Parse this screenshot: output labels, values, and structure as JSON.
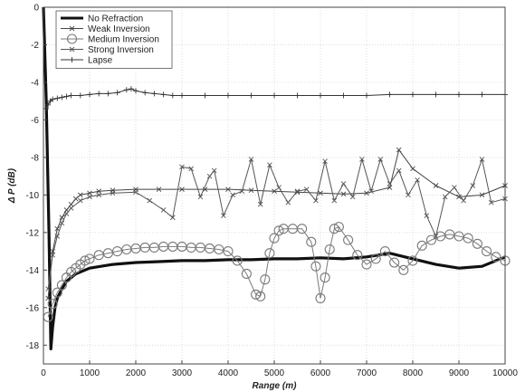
{
  "chart_data": {
    "type": "line",
    "title": "",
    "xlabel": "Range (m)",
    "ylabel": "Δ P (dB)",
    "xlim": [
      0,
      10000
    ],
    "ylim": [
      -19,
      0
    ],
    "xticks": [
      "0",
      "1000",
      "2000",
      "3000",
      "4000",
      "5000",
      "6000",
      "7000",
      "8000",
      "9000",
      "10000"
    ],
    "yticks": [
      "0",
      "-2",
      "-4",
      "-6",
      "-8",
      "-10",
      "-12",
      "-14",
      "-16",
      "-18"
    ],
    "grid": true,
    "legend_position": "top-left",
    "series": [
      {
        "name": "No Refraction",
        "marker": "none",
        "style": "thick",
        "x": [
          0,
          60,
          120,
          160,
          200,
          250,
          300,
          400,
          500,
          700,
          1000,
          1500,
          2000,
          2500,
          3000,
          3500,
          4000,
          4500,
          5000,
          5500,
          6000,
          6500,
          7000,
          7500,
          8000,
          8500,
          9000,
          9500,
          10000
        ],
        "y": [
          0,
          -5,
          -12,
          -18.2,
          -17,
          -16,
          -15.5,
          -15,
          -14.6,
          -14.2,
          -13.9,
          -13.7,
          -13.6,
          -13.55,
          -13.5,
          -13.5,
          -13.45,
          -13.45,
          -13.4,
          -13.4,
          -13.35,
          -13.4,
          -13.3,
          -13.1,
          -13.4,
          -13.7,
          -13.9,
          -13.8,
          -13.3
        ]
      },
      {
        "name": "Weak Inversion",
        "marker": "x",
        "style": "thin",
        "x": [
          100,
          200,
          300,
          400,
          500,
          600,
          700,
          800,
          1000,
          1200,
          1500,
          2000,
          2500,
          3000,
          3500,
          4000,
          4500,
          5000,
          5500,
          6000,
          6500,
          7000,
          7500,
          7700,
          8000,
          8500,
          9000,
          9500,
          10000
        ],
        "y": [
          -15.5,
          -13,
          -11.8,
          -11.2,
          -10.8,
          -10.5,
          -10.2,
          -10,
          -9.9,
          -9.8,
          -9.75,
          -9.7,
          -9.7,
          -9.7,
          -9.7,
          -9.7,
          -9.75,
          -9.8,
          -9.85,
          -9.9,
          -9.95,
          -9.9,
          -9.6,
          -7.6,
          -8.6,
          -9.5,
          -10.1,
          -10.0,
          -9.5
        ]
      },
      {
        "name": "Medium Inversion",
        "marker": "o",
        "style": "thin",
        "x": [
          100,
          200,
          300,
          400,
          500,
          600,
          700,
          800,
          900,
          1000,
          1200,
          1400,
          1600,
          1800,
          2000,
          2200,
          2400,
          2600,
          2800,
          3000,
          3200,
          3400,
          3600,
          3800,
          4000,
          4200,
          4400,
          4600,
          4700,
          4800,
          4900,
          5000,
          5100,
          5200,
          5400,
          5600,
          5800,
          5900,
          6000,
          6100,
          6200,
          6300,
          6400,
          6600,
          6800,
          7000,
          7200,
          7400,
          7600,
          7800,
          8000,
          8200,
          8400,
          8600,
          8800,
          9000,
          9200,
          9400,
          9600,
          9800,
          10000
        ],
        "y": [
          -16.5,
          -15.8,
          -15.2,
          -14.8,
          -14.4,
          -14.1,
          -13.9,
          -13.7,
          -13.5,
          -13.4,
          -13.2,
          -13.1,
          -13,
          -12.9,
          -12.85,
          -12.8,
          -12.8,
          -12.75,
          -12.75,
          -12.75,
          -12.8,
          -12.8,
          -12.85,
          -12.9,
          -13,
          -13.5,
          -14.2,
          -15.3,
          -15.4,
          -14.5,
          -13.1,
          -12.3,
          -11.9,
          -11.8,
          -11.8,
          -11.8,
          -12.5,
          -13.8,
          -15.5,
          -14.4,
          -12.9,
          -11.8,
          -11.7,
          -12.4,
          -13.2,
          -13.7,
          -13.4,
          -13.0,
          -13.6,
          -14.0,
          -13.5,
          -12.7,
          -12.4,
          -12.2,
          -12.1,
          -12.2,
          -12.3,
          -12.6,
          -13.0,
          -13.3,
          -13.5
        ]
      },
      {
        "name": "Strong Inversion",
        "marker": "x",
        "style": "thin",
        "x": [
          100,
          200,
          300,
          400,
          500,
          600,
          800,
          1000,
          1200,
          1500,
          2000,
          2300,
          2600,
          2800,
          3000,
          3200,
          3400,
          3600,
          3700,
          3900,
          4100,
          4300,
          4500,
          4700,
          4900,
          5100,
          5300,
          5500,
          5700,
          5900,
          6100,
          6300,
          6500,
          6700,
          6900,
          7100,
          7300,
          7500,
          7700,
          7900,
          8100,
          8300,
          8500,
          8700,
          8900,
          9100,
          9300,
          9500,
          9700,
          10000
        ],
        "y": [
          -15,
          -13.2,
          -12.2,
          -11.5,
          -11,
          -10.7,
          -10.3,
          -10.1,
          -10,
          -9.9,
          -9.85,
          -10.3,
          -10.8,
          -11.2,
          -8.5,
          -8.6,
          -10.1,
          -9.0,
          -8.7,
          -11.1,
          -10.0,
          -9.8,
          -8.1,
          -10.5,
          -8.4,
          -9.6,
          -10.4,
          -9.8,
          -9.7,
          -10.3,
          -8.2,
          -10.3,
          -9.4,
          -10.1,
          -8.1,
          -9.8,
          -8.1,
          -9.4,
          -8.7,
          -10.0,
          -9.2,
          -11.1,
          -12.2,
          -10.1,
          -9.6,
          -10.3,
          -9.5,
          -8.1,
          -10.4,
          -10.2
        ]
      },
      {
        "name": "Lapse",
        "marker": "+",
        "style": "thin",
        "x": [
          60,
          100,
          150,
          200,
          300,
          400,
          500,
          600,
          800,
          1000,
          1200,
          1400,
          1600,
          1800,
          1900,
          2000,
          2200,
          2400,
          2600,
          2800,
          3000,
          3500,
          4000,
          4500,
          5000,
          5500,
          6000,
          6500,
          7000,
          7500,
          8000,
          8500,
          9000,
          9500,
          10000
        ],
        "y": [
          -5.4,
          -5.2,
          -5.0,
          -4.9,
          -4.85,
          -4.8,
          -4.75,
          -4.7,
          -4.7,
          -4.65,
          -4.6,
          -4.6,
          -4.55,
          -4.4,
          -4.35,
          -4.45,
          -4.55,
          -4.6,
          -4.65,
          -4.7,
          -4.7,
          -4.7,
          -4.7,
          -4.7,
          -4.7,
          -4.7,
          -4.7,
          -4.7,
          -4.7,
          -4.65,
          -4.65,
          -4.65,
          -4.65,
          -4.65,
          -4.65
        ]
      }
    ]
  }
}
